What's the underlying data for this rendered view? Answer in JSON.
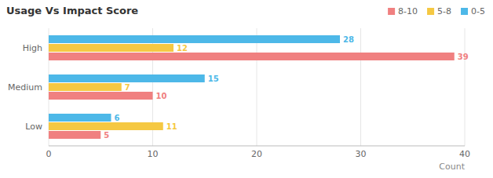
{
  "chart_data": {
    "type": "bar",
    "orientation": "horizontal",
    "title": "Usage Vs Impact Score",
    "x_label": "Count",
    "categories": [
      "High",
      "Medium",
      "Low"
    ],
    "series": [
      {
        "name": "0-5",
        "color": "#4db8e8",
        "values": [
          28,
          15,
          6
        ]
      },
      {
        "name": "5-8",
        "color": "#f5c842",
        "values": [
          12,
          7,
          11
        ]
      },
      {
        "name": "8-10",
        "color": "#f08080",
        "values": [
          39,
          10,
          5
        ]
      }
    ],
    "xlim": [
      0,
      40
    ],
    "xticks": [
      0,
      10,
      20,
      30,
      40
    ],
    "grid": true,
    "legend": "upper right",
    "data_labels": true
  }
}
